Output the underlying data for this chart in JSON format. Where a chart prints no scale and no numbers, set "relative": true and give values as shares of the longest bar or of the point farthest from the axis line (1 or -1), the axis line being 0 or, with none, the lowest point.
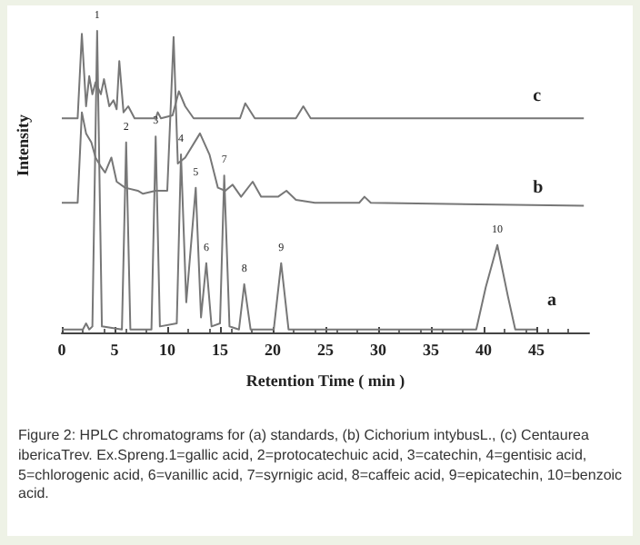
{
  "chart_data": {
    "type": "line",
    "relative": true,
    "xlabel": "Retention Time ( min )",
    "ylabel": "Intensity",
    "xlim": [
      0,
      50
    ],
    "xticks": [
      0,
      5,
      10,
      15,
      20,
      25,
      30,
      35,
      40,
      45
    ],
    "grid": false,
    "legend": false,
    "marker": "none",
    "line_style": "solid",
    "series": [
      {
        "name": "c",
        "color": "#777777",
        "x": [
          0,
          1.5,
          1.9,
          2.3,
          2.6,
          2.9,
          3.2,
          3.7,
          4.0,
          4.5,
          4.9,
          5.2,
          5.45,
          5.85,
          6.3,
          6.9,
          8.9,
          9.1,
          9.4,
          10.5,
          11.1,
          11.7,
          12.5,
          15.4,
          16.9,
          17.4,
          18.3,
          22.2,
          22.9,
          23.6,
          49.5
        ],
        "values": [
          0.71,
          0.71,
          0.99,
          0.75,
          0.85,
          0.79,
          0.83,
          0.79,
          0.84,
          0.75,
          0.77,
          0.74,
          0.9,
          0.73,
          0.75,
          0.71,
          0.71,
          0.73,
          0.71,
          0.72,
          0.8,
          0.75,
          0.71,
          0.71,
          0.71,
          0.76,
          0.71,
          0.71,
          0.75,
          0.71,
          0.71
        ]
      },
      {
        "name": "b",
        "color": "#777777",
        "x": [
          0,
          1.5,
          1.9,
          2.3,
          2.8,
          3.2,
          3.7,
          4.1,
          4.7,
          5.2,
          6.0,
          7.2,
          7.7,
          8.9,
          10.0,
          10.6,
          11.0,
          11.7,
          13.1,
          14.0,
          14.8,
          15.5,
          16.2,
          17.0,
          18.1,
          18.9,
          20.5,
          21.3,
          22.2,
          24,
          28.2,
          28.7,
          29.3,
          49.5
        ],
        "values": [
          0.43,
          0.43,
          0.73,
          0.66,
          0.63,
          0.58,
          0.55,
          0.53,
          0.58,
          0.5,
          0.48,
          0.47,
          0.46,
          0.47,
          0.47,
          0.98,
          0.56,
          0.58,
          0.66,
          0.59,
          0.48,
          0.47,
          0.49,
          0.45,
          0.5,
          0.45,
          0.45,
          0.47,
          0.44,
          0.43,
          0.43,
          0.45,
          0.43,
          0.42
        ]
      },
      {
        "name": "a",
        "color": "#777777",
        "x": [
          0,
          2.0,
          2.3,
          2.6,
          2.9,
          3.35,
          3.8,
          5.7,
          6.1,
          6.5,
          8.5,
          8.9,
          9.3,
          10.9,
          11.3,
          11.8,
          12.7,
          13.2,
          13.7,
          14.2,
          15.0,
          15.4,
          15.9,
          16.8,
          17.3,
          17.9,
          20.1,
          20.8,
          21.5,
          39.3,
          40.2,
          41.3,
          42.3,
          43,
          45
        ],
        "values": [
          0.01,
          0.01,
          0.03,
          0.01,
          0.02,
          1.0,
          0.02,
          0.01,
          0.63,
          0.01,
          0.01,
          0.65,
          0.02,
          0.03,
          0.59,
          0.1,
          0.48,
          0.05,
          0.23,
          0.02,
          0.03,
          0.52,
          0.02,
          0.01,
          0.16,
          0.01,
          0.01,
          0.23,
          0.01,
          0.01,
          0.15,
          0.29,
          0.12,
          0.01,
          0.01
        ]
      }
    ],
    "annotations": [
      {
        "text": "1",
        "x": 3.35,
        "y": 1.0
      },
      {
        "text": "2",
        "x": 6.1,
        "y": 0.63
      },
      {
        "text": "3",
        "x": 8.9,
        "y": 0.65
      },
      {
        "text": "4",
        "x": 11.3,
        "y": 0.59
      },
      {
        "text": "5",
        "x": 12.7,
        "y": 0.48
      },
      {
        "text": "6",
        "x": 13.7,
        "y": 0.23
      },
      {
        "text": "7",
        "x": 15.4,
        "y": 0.52
      },
      {
        "text": "8",
        "x": 17.3,
        "y": 0.16
      },
      {
        "text": "9",
        "x": 20.8,
        "y": 0.23
      },
      {
        "text": "10",
        "x": 41.3,
        "y": 0.29
      },
      "Figure 2: HPLC chromatograms for (a) standards, (b) Cichorium intybusL., (c) Centaurea ibericaTrev. Ex.Spreng.1=gallic acid, 2=protocatechuic acid, 3=catechin, 4=gentisic acid, 5=chlorogenic acid, 6=vanillic acid, 7=syrnigic acid, 8=caffeic acid, 9=epicatechin, 10=benzoic acid."
    ]
  }
}
